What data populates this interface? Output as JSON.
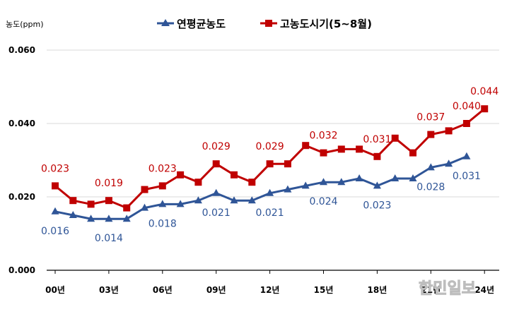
{
  "chart_data": {
    "type": "line",
    "ylabel": "농도(ppm)",
    "ylim": [
      0,
      0.06
    ],
    "yticks": [
      "0.000",
      "0.020",
      "0.040",
      "0.060"
    ],
    "x_tick_labels": [
      "00년",
      "03년",
      "06년",
      "09년",
      "12년",
      "15년",
      "18년",
      "21년",
      "24년"
    ],
    "grid": true,
    "legend_position": "top",
    "series": [
      {
        "name": "연평균농도",
        "color": "#2f5597",
        "marker": "triangle",
        "values": [
          0.016,
          0.015,
          0.014,
          0.014,
          0.014,
          0.017,
          0.018,
          0.018,
          0.019,
          0.021,
          0.019,
          0.019,
          0.021,
          0.022,
          0.023,
          0.024,
          0.024,
          0.025,
          0.023,
          0.025,
          0.025,
          0.028,
          0.029,
          0.031
        ],
        "labels": [
          {
            "i": 0,
            "text": "0.016"
          },
          {
            "i": 3,
            "text": "0.014"
          },
          {
            "i": 6,
            "text": "0.018"
          },
          {
            "i": 9,
            "text": "0.021"
          },
          {
            "i": 12,
            "text": "0.021"
          },
          {
            "i": 15,
            "text": "0.024"
          },
          {
            "i": 18,
            "text": "0.023"
          },
          {
            "i": 21,
            "text": "0.028"
          },
          {
            "i": 23,
            "text": "0.031"
          }
        ]
      },
      {
        "name": "고농도시기(5~8월)",
        "color": "#c00000",
        "marker": "square",
        "values": [
          0.023,
          0.019,
          0.018,
          0.019,
          0.017,
          0.022,
          0.023,
          0.026,
          0.024,
          0.029,
          0.026,
          0.024,
          0.029,
          0.029,
          0.034,
          0.032,
          0.033,
          0.033,
          0.031,
          0.036,
          0.032,
          0.037,
          0.038,
          0.04,
          0.044
        ],
        "labels": [
          {
            "i": 0,
            "text": "0.023"
          },
          {
            "i": 3,
            "text": "0.019"
          },
          {
            "i": 6,
            "text": "0.023"
          },
          {
            "i": 9,
            "text": "0.029"
          },
          {
            "i": 12,
            "text": "0.029"
          },
          {
            "i": 15,
            "text": "0.032"
          },
          {
            "i": 18,
            "text": "0.031"
          },
          {
            "i": 21,
            "text": "0.037"
          },
          {
            "i": 23,
            "text": "0.040"
          },
          {
            "i": 24,
            "text": "0.044"
          }
        ]
      }
    ]
  },
  "watermark": "한민일보"
}
